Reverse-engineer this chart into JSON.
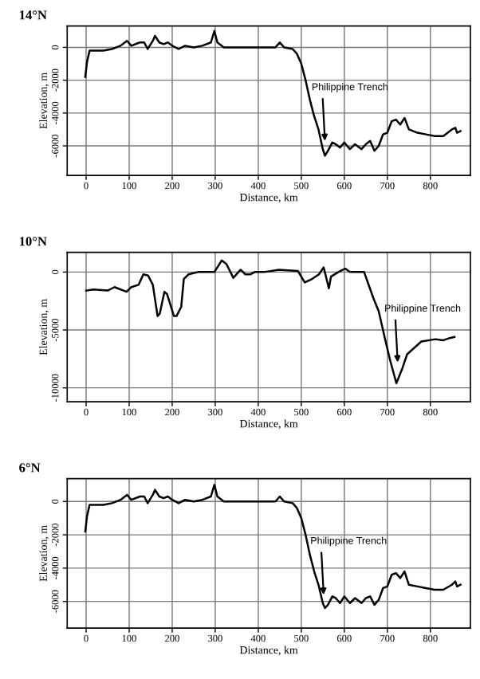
{
  "chart_data": [
    {
      "type": "line",
      "title": "14°N",
      "xlabel": "Distance, km",
      "ylabel": "Elevation, m",
      "xlim": [
        -44,
        893
      ],
      "ylim": [
        -7800,
        1300
      ],
      "xticks": [
        0,
        100,
        200,
        300,
        400,
        500,
        600,
        700,
        800
      ],
      "yticks": [
        -6000,
        -4000,
        -2000,
        0
      ],
      "grid": true,
      "annotations": [
        {
          "text": "Philippine Trench",
          "x": 555,
          "y": -5700
        }
      ],
      "series": [
        {
          "color": "#000000",
          "x": [
            -2,
            2,
            8,
            20,
            40,
            60,
            80,
            95,
            105,
            125,
            135,
            143,
            155,
            160,
            170,
            180,
            190,
            200,
            215,
            230,
            250,
            270,
            290,
            298,
            305,
            320,
            350,
            400,
            440,
            450,
            460,
            480,
            490,
            500,
            510,
            520,
            530,
            540,
            550,
            555,
            562,
            572,
            580,
            590,
            600,
            613,
            625,
            640,
            650,
            660,
            670,
            680,
            690,
            700,
            710,
            720,
            730,
            740,
            750,
            770,
            790,
            810,
            830,
            850,
            858,
            862,
            870
          ],
          "values": [
            -1800,
            -900,
            -200,
            -200,
            -200,
            -100,
            100,
            400,
            100,
            300,
            300,
            -100,
            400,
            700,
            300,
            200,
            300,
            100,
            -100,
            100,
            0,
            100,
            300,
            1000,
            300,
            0,
            0,
            0,
            0,
            300,
            0,
            -100,
            -400,
            -1000,
            -2000,
            -3200,
            -4200,
            -5000,
            -6200,
            -6600,
            -6300,
            -5800,
            -5900,
            -6100,
            -5800,
            -6200,
            -5900,
            -6200,
            -5900,
            -5700,
            -6300,
            -6000,
            -5300,
            -5200,
            -4500,
            -4400,
            -4700,
            -4300,
            -5000,
            -5200,
            -5300,
            -5400,
            -5400,
            -5000,
            -4900,
            -5200,
            -5100
          ]
        }
      ]
    },
    {
      "type": "line",
      "title": "10°N",
      "xlabel": "Distance, km",
      "ylabel": "Elevation, m",
      "xlim": [
        -44,
        893
      ],
      "ylim": [
        -11200,
        1700
      ],
      "xticks": [
        0,
        100,
        200,
        300,
        400,
        500,
        600,
        700,
        800
      ],
      "yticks": [
        -10000,
        -5000,
        0
      ],
      "grid": true,
      "annotations": [
        {
          "text": "Philippine Trench",
          "x": 724,
          "y": -7800
        }
      ],
      "series": [
        {
          "color": "#000000",
          "x": [
            0,
            17,
            50,
            66,
            94,
            105,
            122,
            133,
            144,
            155,
            166,
            171,
            182,
            188,
            204,
            210,
            221,
            227,
            238,
            260,
            298,
            315,
            326,
            342,
            359,
            370,
            381,
            392,
            414,
            448,
            492,
            508,
            525,
            541,
            552,
            564,
            569,
            586,
            602,
            613,
            646,
            668,
            680,
            696,
            707,
            721,
            735,
            746,
            779,
            812,
            829,
            845,
            856
          ],
          "values": [
            -1600,
            -1500,
            -1600,
            -1300,
            -1700,
            -1300,
            -1100,
            -200,
            -300,
            -1100,
            -3800,
            -3600,
            -1700,
            -1900,
            -3800,
            -3800,
            -3000,
            -600,
            -200,
            0,
            0,
            1000,
            700,
            -500,
            200,
            -200,
            -200,
            0,
            0,
            200,
            100,
            -900,
            -600,
            -200,
            400,
            -1400,
            -400,
            0,
            300,
            0,
            0,
            -2300,
            -3400,
            -6000,
            -7700,
            -9600,
            -8300,
            -7100,
            -6000,
            -5800,
            -5900,
            -5700,
            -5600
          ]
        }
      ]
    },
    {
      "type": "line",
      "title": "6°N",
      "xlabel": "Distance, km",
      "ylabel": "Elevation, m",
      "xlim": [
        -44,
        893
      ],
      "ylim": [
        -7600,
        1370
      ],
      "xticks": [
        0,
        100,
        200,
        300,
        400,
        500,
        600,
        700,
        800
      ],
      "yticks": [
        -6000,
        -4000,
        -2000,
        0
      ],
      "grid": true,
      "annotations": [
        {
          "text": "Philippine Trench",
          "x": 552,
          "y": -5600
        }
      ],
      "series": [
        {
          "color": "#000000",
          "x": [
            -2,
            2,
            8,
            20,
            40,
            60,
            80,
            95,
            105,
            125,
            135,
            143,
            155,
            160,
            170,
            180,
            190,
            200,
            215,
            230,
            250,
            270,
            290,
            298,
            305,
            320,
            350,
            400,
            440,
            450,
            460,
            480,
            490,
            500,
            510,
            520,
            530,
            540,
            550,
            555,
            562,
            572,
            580,
            590,
            600,
            613,
            625,
            640,
            650,
            660,
            670,
            680,
            690,
            700,
            710,
            720,
            730,
            740,
            750,
            770,
            790,
            810,
            830,
            850,
            858,
            862,
            870
          ],
          "values": [
            -1800,
            -900,
            -200,
            -200,
            -200,
            -100,
            100,
            400,
            100,
            300,
            300,
            -100,
            400,
            700,
            300,
            200,
            300,
            100,
            -100,
            100,
            0,
            100,
            300,
            1000,
            300,
            0,
            0,
            0,
            0,
            300,
            0,
            -100,
            -400,
            -1000,
            -2000,
            -3200,
            -4200,
            -5000,
            -6100,
            -6400,
            -6200,
            -5700,
            -5800,
            -6100,
            -5700,
            -6100,
            -5800,
            -6100,
            -5800,
            -5700,
            -6200,
            -5900,
            -5200,
            -5100,
            -4400,
            -4300,
            -4600,
            -4200,
            -5000,
            -5100,
            -5200,
            -5300,
            -5300,
            -5000,
            -4800,
            -5100,
            -5000
          ]
        }
      ]
    }
  ]
}
